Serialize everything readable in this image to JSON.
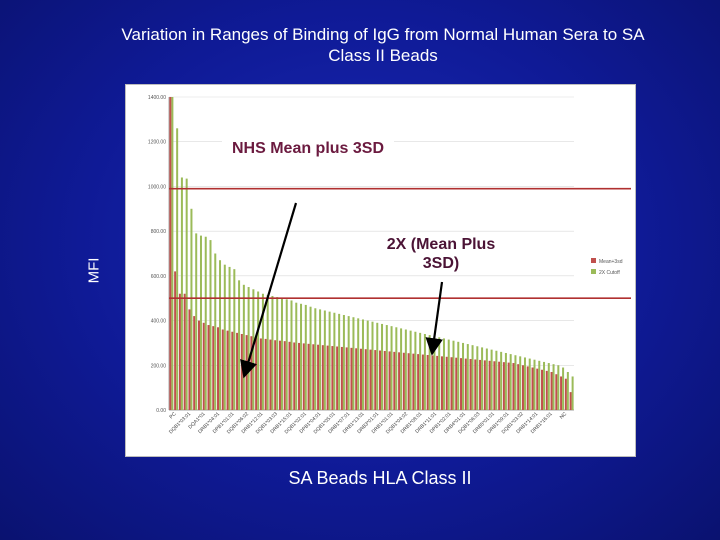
{
  "chart_data": {
    "type": "bar",
    "title": "Variation in Ranges of Binding of IgG from Normal Human Sera to SA Class II Beads",
    "ylabel": "MFI",
    "xlabel": "SA Beads HLA Class II",
    "ylim": [
      0,
      1400
    ],
    "yticks": [
      "0.00",
      "200.00",
      "400.00",
      "600.00",
      "800.00",
      "1000.00",
      "1200.00",
      "1400.00"
    ],
    "xtick_labels": [
      "PC",
      "DQB1*03:01",
      "DQA1*01",
      "DRB1*04:01",
      "DPB1*01:01",
      "DQB1*06:02",
      "DRB1*12:01",
      "DQB1*03:03",
      "DRB1*15:01",
      "DQB1*02:01",
      "DPB1*04:01",
      "DQB1*05:01",
      "DRB1*07:01",
      "DRB1*13:01",
      "DRB3*01:01",
      "DRB1*01:01",
      "DQB1*04:02",
      "DRB1*08:01",
      "DRB1*11:01",
      "DPB1*02:01",
      "DRB4*01:01",
      "DQB1*06:03",
      "DRB5*01:01",
      "DRB1*09:01",
      "DQB1*03:02",
      "DRB1*14:01",
      "DRB1*16:01",
      "NC"
    ],
    "threshold_lines": [
      {
        "name": "NHS Mean plus 3SD",
        "value": 990,
        "color": "#b03030"
      },
      {
        "name": "2X (Mean Plus 3SD)",
        "value": 500,
        "color": "#b03030"
      }
    ],
    "legend": [
      {
        "name": "Mean+3sd",
        "color": "#c0504d"
      },
      {
        "name": "2X Cutoff",
        "color": "#9bbb59"
      }
    ],
    "legend_position": "right",
    "series": [
      {
        "name": "Mean+3sd",
        "color": "#c0504d",
        "values": [
          1400,
          620,
          520,
          520,
          450,
          420,
          400,
          390,
          380,
          375,
          370,
          360,
          355,
          350,
          345,
          340,
          335,
          330,
          325,
          320,
          318,
          315,
          312,
          310,
          308,
          305,
          302,
          300,
          298,
          296,
          294,
          292,
          290,
          288,
          286,
          284,
          282,
          280,
          278,
          276,
          274,
          272,
          270,
          268,
          266,
          264,
          262,
          260,
          258,
          256,
          254,
          252,
          250,
          248,
          246,
          244,
          242,
          240,
          238,
          236,
          234,
          232,
          230,
          228,
          226,
          224,
          222,
          220,
          218,
          216,
          214,
          212,
          210,
          205,
          200,
          195,
          190,
          185,
          180,
          175,
          170,
          160,
          150,
          140,
          80
        ]
      },
      {
        "name": "2X Cutoff",
        "color": "#9bbb59",
        "values": [
          1400,
          1260,
          1040,
          1035,
          900,
          790,
          780,
          775,
          760,
          700,
          670,
          650,
          640,
          630,
          580,
          560,
          550,
          540,
          530,
          520,
          515,
          510,
          505,
          500,
          495,
          490,
          480,
          475,
          470,
          462,
          455,
          450,
          445,
          440,
          435,
          430,
          425,
          420,
          415,
          410,
          405,
          400,
          395,
          390,
          385,
          380,
          375,
          370,
          365,
          360,
          355,
          350,
          345,
          340,
          335,
          330,
          325,
          320,
          315,
          310,
          305,
          300,
          295,
          290,
          285,
          280,
          275,
          270,
          265,
          260,
          255,
          250,
          245,
          240,
          235,
          230,
          225,
          220,
          215,
          210,
          205,
          200,
          190,
          170,
          150
        ]
      }
    ]
  },
  "annotations": {
    "nhs_mean": "NHS Mean plus 3SD",
    "two_x": "2X (Mean Plus 3SD)"
  }
}
